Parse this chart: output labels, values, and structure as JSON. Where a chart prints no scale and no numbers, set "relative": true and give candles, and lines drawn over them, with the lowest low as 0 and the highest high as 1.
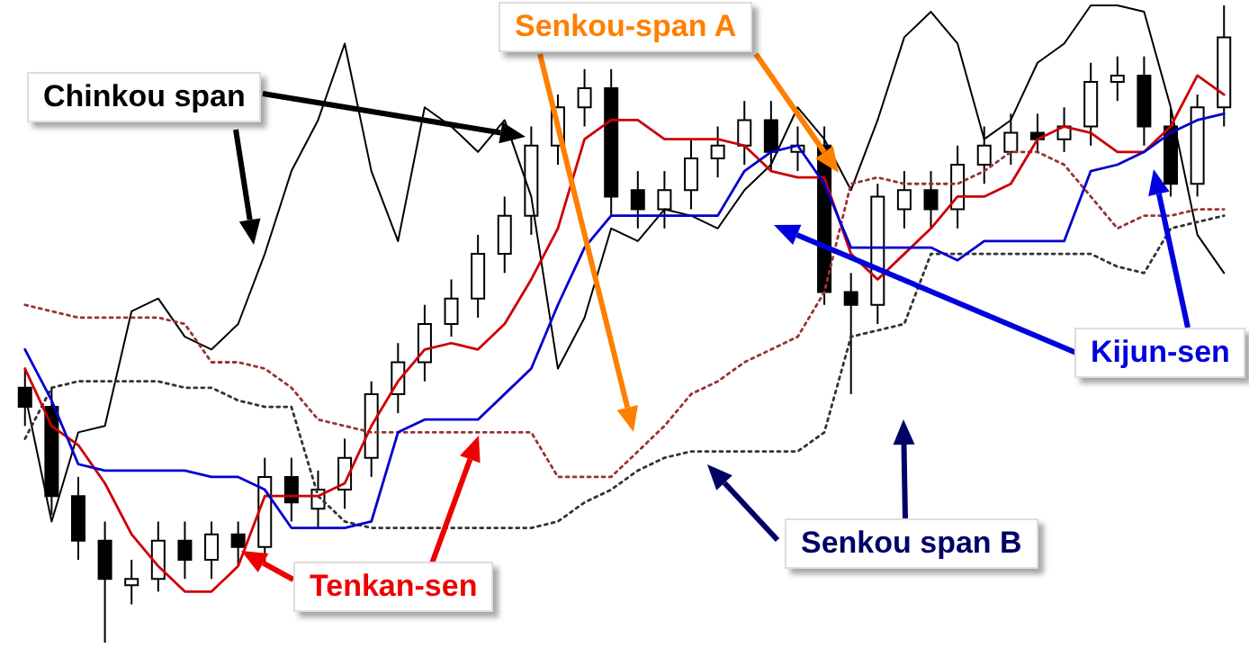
{
  "chart_data": {
    "type": "candlestick",
    "relative": true,
    "categories": [
      null,
      null,
      null,
      null,
      null,
      null,
      null,
      null,
      null,
      null,
      null,
      null,
      null,
      null,
      null,
      null,
      null,
      null,
      null,
      null,
      null,
      null,
      null,
      null,
      null,
      null,
      null,
      null,
      null,
      null,
      null,
      null,
      null,
      null,
      null,
      null,
      null,
      null,
      null,
      null,
      null,
      null,
      null,
      null,
      null,
      null
    ],
    "ohlc": [
      [
        0.4,
        0.43,
        0.34,
        0.37
      ],
      [
        0.37,
        0.4,
        0.2,
        0.23
      ],
      [
        0.23,
        0.26,
        0.13,
        0.16
      ],
      [
        0.16,
        0.19,
        0,
        0.1
      ],
      [
        0.09,
        0.13,
        0.06,
        0.1
      ],
      [
        0.1,
        0.19,
        0.08,
        0.16
      ],
      [
        0.16,
        0.19,
        0.1,
        0.13
      ],
      [
        0.13,
        0.19,
        0.1,
        0.17
      ],
      [
        0.17,
        0.19,
        0.12,
        0.15
      ],
      [
        0.15,
        0.29,
        0.12,
        0.26
      ],
      [
        0.26,
        0.29,
        0.19,
        0.22
      ],
      [
        0.21,
        0.27,
        0.18,
        0.24
      ],
      [
        0.24,
        0.32,
        0.21,
        0.29
      ],
      [
        0.29,
        0.41,
        0.26,
        0.39
      ],
      [
        0.39,
        0.47,
        0.36,
        0.44
      ],
      [
        0.44,
        0.53,
        0.41,
        0.5
      ],
      [
        0.5,
        0.57,
        0.48,
        0.54
      ],
      [
        0.54,
        0.64,
        0.51,
        0.61
      ],
      [
        0.61,
        0.7,
        0.58,
        0.67
      ],
      [
        0.67,
        0.81,
        0.64,
        0.78
      ],
      [
        0.78,
        0.86,
        0.75,
        0.84
      ],
      [
        0.84,
        0.9,
        0.81,
        0.87
      ],
      [
        0.87,
        0.9,
        0.67,
        0.7
      ],
      [
        0.71,
        0.74,
        0.65,
        0.68
      ],
      [
        0.68,
        0.74,
        0.65,
        0.71
      ],
      [
        0.71,
        0.79,
        0.68,
        0.76
      ],
      [
        0.76,
        0.81,
        0.73,
        0.78
      ],
      [
        0.78,
        0.85,
        0.75,
        0.82
      ],
      [
        0.82,
        0.85,
        0.74,
        0.77
      ],
      [
        0.77,
        0.81,
        0.74,
        0.78
      ],
      [
        0.78,
        0.81,
        0.53,
        0.55
      ],
      [
        0.55,
        0.58,
        0.39,
        0.53
      ],
      [
        0.53,
        0.72,
        0.5,
        0.7
      ],
      [
        0.68,
        0.74,
        0.65,
        0.71
      ],
      [
        0.71,
        0.74,
        0.65,
        0.68
      ],
      [
        0.68,
        0.78,
        0.65,
        0.75
      ],
      [
        0.75,
        0.81,
        0.72,
        0.78
      ],
      [
        0.77,
        0.83,
        0.75,
        0.8
      ],
      [
        0.8,
        0.83,
        0.77,
        0.79
      ],
      [
        0.79,
        0.84,
        0.77,
        0.81
      ],
      [
        0.81,
        0.91,
        0.78,
        0.88
      ],
      [
        0.88,
        0.92,
        0.85,
        0.89
      ],
      [
        0.89,
        0.92,
        0.78,
        0.81
      ],
      [
        0.81,
        0.84,
        0.7,
        0.72
      ],
      [
        0.72,
        0.86,
        0.7,
        0.84
      ],
      [
        0.84,
        1,
        0.81,
        0.95
      ]
    ],
    "series": [
      {
        "name": "Chinkou span",
        "type": "line",
        "color": "#000000",
        "values": [
          0.39,
          0.19,
          0.33,
          0.34,
          0.52,
          0.54,
          0.48,
          0.46,
          0.5,
          0.61,
          0.74,
          0.82,
          0.94,
          0.74,
          0.63,
          0.84,
          0.81,
          0.77,
          0.82,
          0.7,
          0.43,
          0.51,
          0.65,
          0.63,
          0.68,
          0.67,
          0.65,
          0.71,
          0.75,
          0.84,
          0.79,
          0.71,
          0.82,
          0.95,
          0.99,
          0.94,
          0.79,
          0.82,
          0.91,
          0.94,
          1.0,
          1.0,
          0.99,
          0.84,
          0.64,
          0.58
        ]
      },
      {
        "name": "Senkou-span A",
        "type": "line",
        "color": "#993333",
        "line_style": "dotted",
        "values": [
          0.53,
          0.52,
          0.51,
          0.51,
          0.51,
          0.51,
          0.5,
          0.44,
          0.44,
          0.43,
          0.4,
          0.35,
          0.34,
          0.33,
          0.33,
          0.33,
          0.33,
          0.33,
          0.33,
          0.33,
          0.26,
          0.26,
          0.26,
          0.3,
          0.34,
          0.39,
          0.41,
          0.44,
          0.46,
          0.48,
          0.55,
          0.72,
          0.73,
          0.72,
          0.72,
          0.72,
          0.74,
          0.77,
          0.77,
          0.75,
          0.7,
          0.65,
          0.67,
          0.67,
          0.68,
          0.68
        ]
      },
      {
        "name": "Senkou span B",
        "type": "line",
        "color": "#333333",
        "line_style": "dotted",
        "values": [
          0.32,
          0.4,
          0.41,
          0.41,
          0.41,
          0.41,
          0.4,
          0.4,
          0.38,
          0.37,
          0.37,
          0.23,
          0.19,
          0.18,
          0.18,
          0.18,
          0.18,
          0.18,
          0.18,
          0.18,
          0.19,
          0.22,
          0.24,
          0.27,
          0.29,
          0.3,
          0.3,
          0.3,
          0.3,
          0.3,
          0.33,
          0.48,
          0.49,
          0.5,
          0.61,
          0.61,
          0.61,
          0.61,
          0.61,
          0.61,
          0.61,
          0.59,
          0.58,
          0.65,
          0.66,
          0.67
        ]
      },
      {
        "name": "Tenkan-sen",
        "type": "line",
        "color": "#cc0000",
        "values": [
          0.43,
          0.34,
          0.31,
          0.25,
          0.17,
          0.12,
          0.08,
          0.08,
          0.12,
          0.23,
          0.23,
          0.23,
          0.25,
          0.34,
          0.41,
          0.46,
          0.47,
          0.46,
          0.5,
          0.57,
          0.65,
          0.79,
          0.82,
          0.82,
          0.79,
          0.79,
          0.79,
          0.78,
          0.74,
          0.73,
          0.73,
          0.61,
          0.57,
          0.61,
          0.65,
          0.7,
          0.7,
          0.72,
          0.79,
          0.81,
          0.8,
          0.77,
          0.77,
          0.81,
          0.89,
          0.86
        ]
      },
      {
        "name": "Kijun-sen",
        "type": "line",
        "color": "#0000cc",
        "values": [
          0.46,
          0.38,
          0.28,
          0.27,
          0.27,
          0.27,
          0.27,
          0.26,
          0.26,
          0.24,
          0.18,
          0.18,
          0.18,
          0.19,
          0.33,
          0.35,
          0.35,
          0.35,
          0.39,
          0.43,
          0.53,
          0.62,
          0.67,
          0.67,
          0.67,
          0.67,
          0.67,
          0.74,
          0.77,
          0.78,
          0.72,
          0.62,
          0.62,
          0.62,
          0.62,
          0.6,
          0.63,
          0.63,
          0.63,
          0.63,
          0.74,
          0.75,
          0.77,
          0.8,
          0.82,
          0.83
        ]
      }
    ]
  }
}
